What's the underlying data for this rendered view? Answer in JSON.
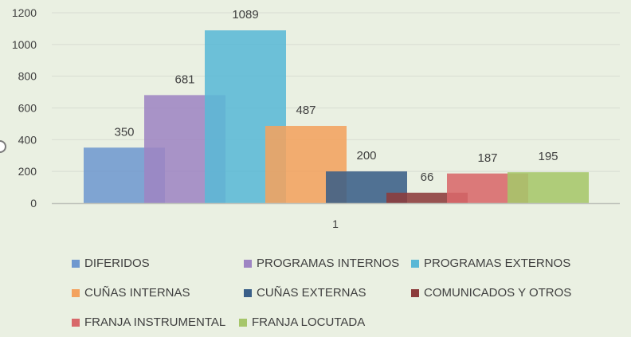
{
  "chart_data": {
    "type": "bar",
    "categories": [
      "1"
    ],
    "series": [
      {
        "name": "DIFERIDOS",
        "values": [
          350
        ],
        "color": "#6f98cf"
      },
      {
        "name": "PROGRAMAS INTERNOS",
        "values": [
          681
        ],
        "color": "#9e85c3"
      },
      {
        "name": "PROGRAMAS EXTERNOS",
        "values": [
          1089
        ],
        "color": "#5ab8d6"
      },
      {
        "name": "CUÑAS INTERNAS",
        "values": [
          487
        ],
        "color": "#f3a25e"
      },
      {
        "name": "CUÑAS EXTERNAS",
        "values": [
          200
        ],
        "color": "#3a5f88"
      },
      {
        "name": "COMUNICADOS Y OTROS",
        "values": [
          66
        ],
        "color": "#8c3b3b"
      },
      {
        "name": "FRANJA INSTRUMENTAL",
        "values": [
          187
        ],
        "color": "#d8686a"
      },
      {
        "name": "FRANJA LOCUTADA",
        "values": [
          195
        ],
        "color": "#a6c66a"
      }
    ],
    "y_ticks": [
      "0",
      "200",
      "400",
      "600",
      "800",
      "1000",
      "1200"
    ],
    "ylim": [
      0,
      1200
    ],
    "grid": true,
    "legend_position": "bottom",
    "title": "",
    "xlabel": "",
    "ylabel": ""
  }
}
